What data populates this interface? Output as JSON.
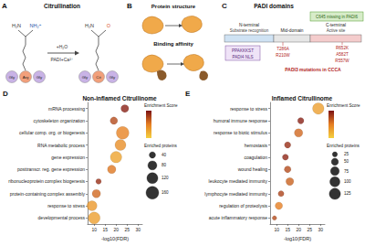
{
  "panel_labels": [
    "A",
    "B",
    "C",
    "D",
    "E"
  ],
  "diagrams": {
    "A": {
      "title": "Citrullination",
      "left": {
        "amine": "H₂N",
        "group": "NH₂⁺",
        "residues": [
          "Gly",
          "Arg",
          "Gly"
        ]
      },
      "reagents": [
        "+H₂O",
        "PADI+Ca²⁺"
      ],
      "right": {
        "amine": "H₂N",
        "group": "O",
        "residues": [
          "Gly",
          "Cit",
          "Gly"
        ]
      }
    },
    "B": {
      "titles": [
        "Protein structure",
        "Binding affinity"
      ]
    },
    "C": {
      "title": "PADI domains",
      "domains": [
        {
          "name": "N-terminal",
          "role": "Substrate recognition"
        },
        {
          "name": "Mid-domain"
        },
        {
          "name": "C-terminal",
          "role": "Active site"
        }
      ],
      "note": "C645 missing in PADI6",
      "nls": [
        "PPAKKKST",
        "PADI4 NLS"
      ],
      "mutations": [
        "T286A",
        "R210W",
        "R652K",
        "A582T",
        "R557W"
      ],
      "mutations_label": "PADI3 mutations in CCCA"
    }
  },
  "chart_data": [
    {
      "type": "scatter",
      "title": "Non-inflamed Citrullinome",
      "x_label": "-log10(FDR)",
      "categories": [
        "mRNA processing",
        "cytoskeleton organization",
        "cellular comp. org. or biogenesis",
        "RNA metabolic process",
        "gene expression",
        "posttranscr. reg. gene expression",
        "ribonucleoprotein complex biogenesis",
        "protein-containing complex assembly",
        "response to stress",
        "developmental process"
      ],
      "values": [
        24,
        19,
        23,
        22,
        20,
        18,
        12,
        11,
        9,
        10
      ],
      "enriched_proteins": [
        60,
        55,
        160,
        120,
        130,
        70,
        30,
        70,
        100,
        140
      ],
      "enrichment_score": [
        3.8,
        3.2,
        2.4,
        2.2,
        1.8,
        2.6,
        3.6,
        2.8,
        2.0,
        1.9
      ],
      "color_title": "Enrichment Score",
      "color_range": [
        1,
        4
      ],
      "size_title": "Enriched proteins",
      "size_legend": [
        40,
        80,
        120,
        160
      ],
      "xlim": [
        7,
        32
      ],
      "xticks": [
        10,
        15,
        20,
        25,
        30
      ],
      "grid": false
    },
    {
      "type": "scatter",
      "title": "Inflamed Citrullinome",
      "x_label": "-log10(FDR)",
      "categories": [
        "response to stress",
        "humoral immune response",
        "response to biotic stimulus",
        "hemostasis",
        "coagulation",
        "wound healing",
        "leukocyte mediated immunity",
        "lymphocyte mediated immunity",
        "regulation of proteolysis",
        "acute inflammatory response"
      ],
      "values": [
        29,
        21,
        20,
        15,
        14,
        15,
        16,
        12,
        11,
        9
      ],
      "enriched_proteins": [
        130,
        40,
        70,
        40,
        38,
        45,
        60,
        35,
        55,
        20
      ],
      "enrichment_score": [
        1.9,
        3.8,
        2.8,
        3.6,
        3.7,
        3.2,
        2.9,
        3.3,
        2.5,
        3.2
      ],
      "color_title": "Enrichment Score",
      "color_range": [
        1,
        4
      ],
      "size_title": "Enriched proteins",
      "size_legend": [
        25,
        50,
        75,
        100,
        125
      ],
      "xlim": [
        7,
        32
      ],
      "xticks": [
        10,
        15,
        20,
        25,
        30
      ],
      "grid": false
    }
  ]
}
